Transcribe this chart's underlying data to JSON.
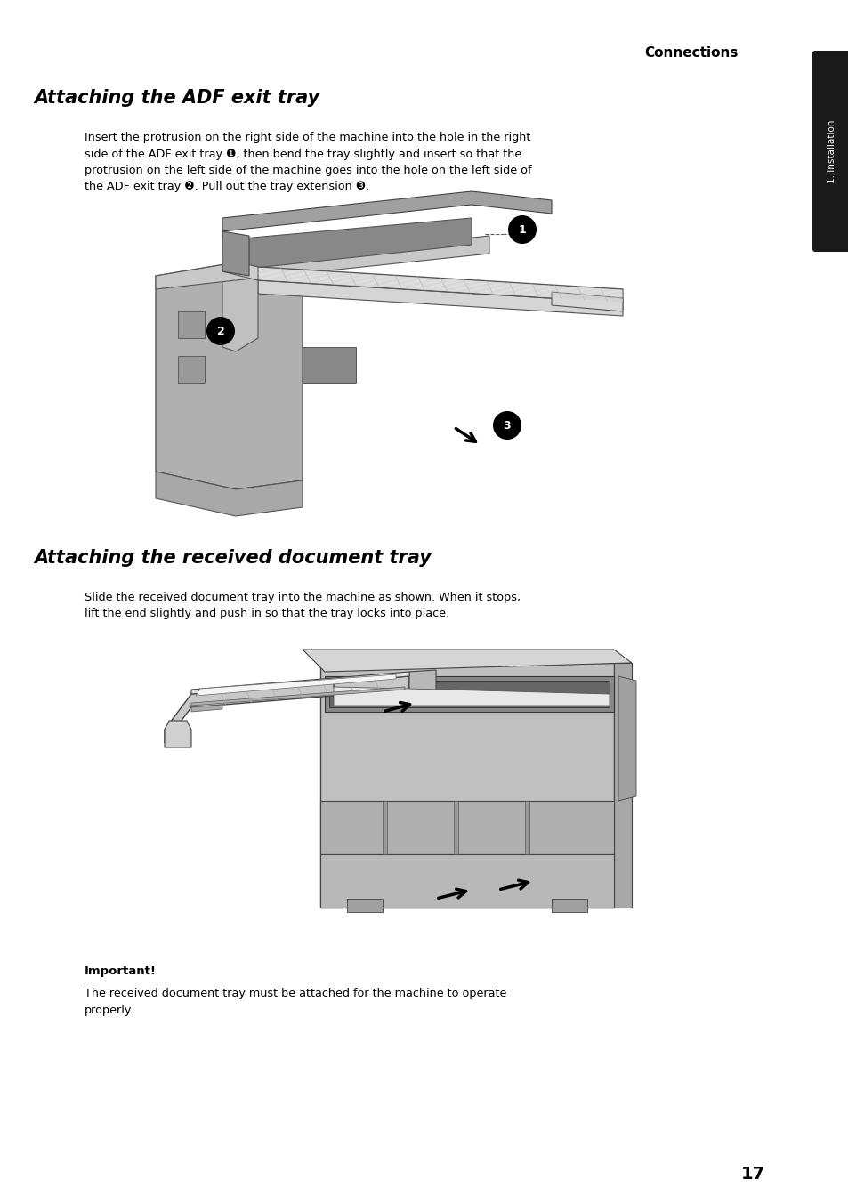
{
  "background_color": "#ffffff",
  "page_width": 9.54,
  "page_height": 13.52,
  "top_label": "Connections",
  "side_tab_text": "1. Installation",
  "side_tab_bg": "#1a1a1a",
  "section1_title": "Attaching the ADF exit tray",
  "section1_body_line1": "Insert the protrusion on the right side of the machine into the hole in the right",
  "section1_body_line2": "side of the ADF exit tray ❶, then bend the tray slightly and insert so that the",
  "section1_body_line3": "protrusion on the left side of the machine goes into the hole on the left side of",
  "section1_body_line4": "the ADF exit tray ❷. Pull out the tray extension ❸.",
  "section2_title": "Attaching the received document tray",
  "section2_body_line1": "Slide the received document tray into the machine as shown. When it stops,",
  "section2_body_line2": "lift the end slightly and push in so that the tray locks into place.",
  "important_label": "Important!",
  "important_body_line1": "The received document tray must be attached for the machine to operate",
  "important_body_line2": "properly.",
  "page_number": "17"
}
